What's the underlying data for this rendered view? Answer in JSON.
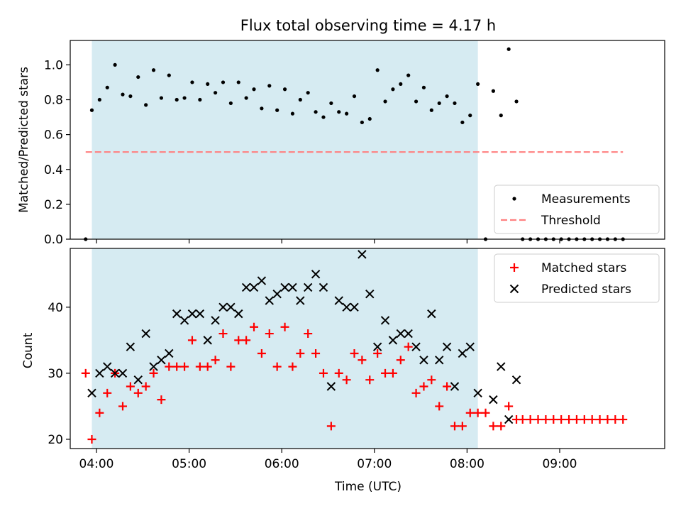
{
  "figure_title": "Flux total observing time = 4.17 h",
  "colors": {
    "shade": "#add8e6",
    "measurements": "#000000",
    "threshold": "#ff8080",
    "matched": "#ff0000",
    "predicted": "#000000"
  },
  "chart_data": [
    {
      "type": "scatter",
      "title": "",
      "ylabel": "Matched/Predicted stars",
      "xlabel": "",
      "x_unit": "minutes after 04:00 UTC",
      "xlim": [
        -17,
        368
      ],
      "ylim": [
        0,
        1.14
      ],
      "yticks": [
        0.0,
        0.2,
        0.4,
        0.6,
        0.8,
        1.0
      ],
      "ytick_labels": [
        "0.0",
        "0.2",
        "0.4",
        "0.6",
        "0.8",
        "1.0"
      ],
      "shaded_span": {
        "start": "03:57",
        "end": "08:07"
      },
      "threshold": {
        "value": 0.5,
        "from": "03:53",
        "to": "09:41"
      },
      "legend": {
        "position": "lower-right",
        "entries": [
          "Measurements",
          "Threshold"
        ]
      },
      "series": [
        {
          "name": "Measurements",
          "marker": "dot",
          "points": [
            [
              "03:53",
              0.0
            ],
            [
              "03:57",
              0.74
            ],
            [
              "04:02",
              0.8
            ],
            [
              "04:07",
              0.87
            ],
            [
              "04:12",
              1.0
            ],
            [
              "04:17",
              0.83
            ],
            [
              "04:22",
              0.82
            ],
            [
              "04:27",
              0.93
            ],
            [
              "04:32",
              0.77
            ],
            [
              "04:37",
              0.97
            ],
            [
              "04:42",
              0.81
            ],
            [
              "04:47",
              0.94
            ],
            [
              "04:52",
              0.8
            ],
            [
              "04:57",
              0.81
            ],
            [
              "05:02",
              0.9
            ],
            [
              "05:07",
              0.8
            ],
            [
              "05:12",
              0.89
            ],
            [
              "05:17",
              0.84
            ],
            [
              "05:22",
              0.9
            ],
            [
              "05:27",
              0.78
            ],
            [
              "05:32",
              0.9
            ],
            [
              "05:37",
              0.81
            ],
            [
              "05:42",
              0.86
            ],
            [
              "05:47",
              0.75
            ],
            [
              "05:52",
              0.88
            ],
            [
              "05:57",
              0.74
            ],
            [
              "06:02",
              0.86
            ],
            [
              "06:07",
              0.72
            ],
            [
              "06:12",
              0.8
            ],
            [
              "06:17",
              0.84
            ],
            [
              "06:22",
              0.73
            ],
            [
              "06:27",
              0.7
            ],
            [
              "06:32",
              0.78
            ],
            [
              "06:37",
              0.73
            ],
            [
              "06:42",
              0.72
            ],
            [
              "06:47",
              0.82
            ],
            [
              "06:52",
              0.67
            ],
            [
              "06:57",
              0.69
            ],
            [
              "07:02",
              0.97
            ],
            [
              "07:07",
              0.79
            ],
            [
              "07:12",
              0.86
            ],
            [
              "07:17",
              0.89
            ],
            [
              "07:22",
              0.94
            ],
            [
              "07:27",
              0.79
            ],
            [
              "07:32",
              0.87
            ],
            [
              "07:37",
              0.74
            ],
            [
              "07:42",
              0.78
            ],
            [
              "07:47",
              0.82
            ],
            [
              "07:52",
              0.78
            ],
            [
              "07:57",
              0.67
            ],
            [
              "08:02",
              0.71
            ],
            [
              "08:07",
              0.89
            ],
            [
              "08:12",
              0.0
            ],
            [
              "08:17",
              0.85
            ],
            [
              "08:22",
              0.71
            ],
            [
              "08:27",
              1.09
            ],
            [
              "08:32",
              0.79
            ],
            [
              "08:36",
              0.0
            ],
            [
              "08:41",
              0.0
            ],
            [
              "08:46",
              0.0
            ],
            [
              "08:51",
              0.0
            ],
            [
              "08:56",
              0.0
            ],
            [
              "09:01",
              0.0
            ],
            [
              "09:06",
              0.0
            ],
            [
              "09:11",
              0.0
            ],
            [
              "09:16",
              0.0
            ],
            [
              "09:21",
              0.0
            ],
            [
              "09:26",
              0.0
            ],
            [
              "09:31",
              0.0
            ],
            [
              "09:36",
              0.0
            ],
            [
              "09:41",
              0.0
            ]
          ]
        }
      ]
    },
    {
      "type": "scatter",
      "title": "",
      "ylabel": "Count",
      "xlabel": "Time (UTC)",
      "xlim": [
        -17,
        368
      ],
      "ylim": [
        18.6,
        48.9
      ],
      "yticks": [
        20,
        30,
        40
      ],
      "ytick_labels": [
        "20",
        "30",
        "40"
      ],
      "xticks": [
        "04:00",
        "05:00",
        "06:00",
        "07:00",
        "08:00",
        "09:00"
      ],
      "shaded_span": {
        "start": "03:57",
        "end": "08:07"
      },
      "legend": {
        "position": "top-right",
        "entries": [
          "Matched stars",
          "Predicted stars"
        ]
      },
      "series": [
        {
          "name": "Matched stars",
          "marker": "plus",
          "points": [
            [
              "03:53",
              30
            ],
            [
              "03:57",
              20
            ],
            [
              "04:02",
              24
            ],
            [
              "04:07",
              27
            ],
            [
              "04:12",
              30
            ],
            [
              "04:17",
              25
            ],
            [
              "04:22",
              28
            ],
            [
              "04:27",
              27
            ],
            [
              "04:32",
              28
            ],
            [
              "04:37",
              30
            ],
            [
              "04:42",
              26
            ],
            [
              "04:47",
              31
            ],
            [
              "04:52",
              31
            ],
            [
              "04:57",
              31
            ],
            [
              "05:02",
              35
            ],
            [
              "05:07",
              31
            ],
            [
              "05:12",
              31
            ],
            [
              "05:17",
              32
            ],
            [
              "05:22",
              36
            ],
            [
              "05:27",
              31
            ],
            [
              "05:32",
              35
            ],
            [
              "05:37",
              35
            ],
            [
              "05:42",
              37
            ],
            [
              "05:47",
              33
            ],
            [
              "05:52",
              36
            ],
            [
              "05:57",
              31
            ],
            [
              "06:02",
              37
            ],
            [
              "06:07",
              31
            ],
            [
              "06:12",
              33
            ],
            [
              "06:17",
              36
            ],
            [
              "06:22",
              33
            ],
            [
              "06:27",
              30
            ],
            [
              "06:32",
              22
            ],
            [
              "06:37",
              30
            ],
            [
              "06:42",
              29
            ],
            [
              "06:47",
              33
            ],
            [
              "06:52",
              32
            ],
            [
              "06:57",
              29
            ],
            [
              "07:02",
              33
            ],
            [
              "07:07",
              30
            ],
            [
              "07:12",
              30
            ],
            [
              "07:17",
              32
            ],
            [
              "07:22",
              34
            ],
            [
              "07:27",
              27
            ],
            [
              "07:32",
              28
            ],
            [
              "07:37",
              29
            ],
            [
              "07:42",
              25
            ],
            [
              "07:47",
              28
            ],
            [
              "07:52",
              22
            ],
            [
              "07:57",
              22
            ],
            [
              "08:02",
              24
            ],
            [
              "08:07",
              24
            ],
            [
              "08:12",
              24
            ],
            [
              "08:17",
              22
            ],
            [
              "08:22",
              22
            ],
            [
              "08:27",
              25
            ],
            [
              "08:32",
              23
            ],
            [
              "08:36",
              23
            ],
            [
              "08:41",
              23
            ],
            [
              "08:46",
              23
            ],
            [
              "08:51",
              23
            ],
            [
              "08:56",
              23
            ],
            [
              "09:01",
              23
            ],
            [
              "09:06",
              23
            ],
            [
              "09:11",
              23
            ],
            [
              "09:16",
              23
            ],
            [
              "09:21",
              23
            ],
            [
              "09:26",
              23
            ],
            [
              "09:31",
              23
            ],
            [
              "09:36",
              23
            ],
            [
              "09:41",
              23
            ]
          ]
        },
        {
          "name": "Predicted stars",
          "marker": "x",
          "points": [
            [
              "03:57",
              27
            ],
            [
              "04:02",
              30
            ],
            [
              "04:07",
              31
            ],
            [
              "04:12",
              30
            ],
            [
              "04:17",
              30
            ],
            [
              "04:22",
              34
            ],
            [
              "04:27",
              29
            ],
            [
              "04:32",
              36
            ],
            [
              "04:37",
              31
            ],
            [
              "04:42",
              32
            ],
            [
              "04:47",
              33
            ],
            [
              "04:52",
              39
            ],
            [
              "04:57",
              38
            ],
            [
              "05:02",
              39
            ],
            [
              "05:07",
              39
            ],
            [
              "05:12",
              35
            ],
            [
              "05:17",
              38
            ],
            [
              "05:22",
              40
            ],
            [
              "05:27",
              40
            ],
            [
              "05:32",
              39
            ],
            [
              "05:37",
              43
            ],
            [
              "05:42",
              43
            ],
            [
              "05:47",
              44
            ],
            [
              "05:52",
              41
            ],
            [
              "05:57",
              42
            ],
            [
              "06:02",
              43
            ],
            [
              "06:07",
              43
            ],
            [
              "06:12",
              41
            ],
            [
              "06:17",
              43
            ],
            [
              "06:22",
              45
            ],
            [
              "06:27",
              43
            ],
            [
              "06:32",
              28
            ],
            [
              "06:37",
              41
            ],
            [
              "06:42",
              40
            ],
            [
              "06:47",
              40
            ],
            [
              "06:52",
              48
            ],
            [
              "06:57",
              42
            ],
            [
              "07:02",
              34
            ],
            [
              "07:07",
              38
            ],
            [
              "07:12",
              35
            ],
            [
              "07:17",
              36
            ],
            [
              "07:22",
              36
            ],
            [
              "07:27",
              34
            ],
            [
              "07:32",
              32
            ],
            [
              "07:37",
              39
            ],
            [
              "07:42",
              32
            ],
            [
              "07:47",
              34
            ],
            [
              "07:52",
              28
            ],
            [
              "07:57",
              33
            ],
            [
              "08:02",
              34
            ],
            [
              "08:07",
              27
            ],
            [
              "08:17",
              26
            ],
            [
              "08:22",
              31
            ],
            [
              "08:27",
              23
            ],
            [
              "08:32",
              29
            ]
          ]
        }
      ]
    }
  ]
}
